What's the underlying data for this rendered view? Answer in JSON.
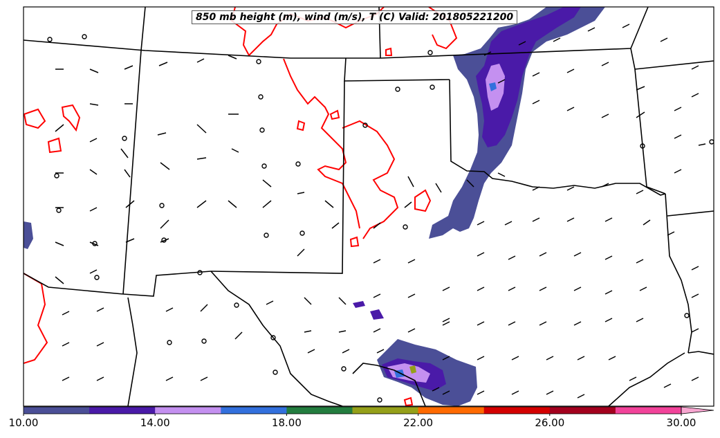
{
  "title": "850 mb height (m), wind (m/s), T (C) Valid: 201805221200",
  "colorbar": {
    "colors": [
      "#4b4f97",
      "#4a1aa8",
      "#c490f0",
      "#3370dd",
      "#237d3f",
      "#95a019",
      "#ff6a00",
      "#d40000",
      "#a3001e",
      "#f2439a",
      "#f7a6d0"
    ],
    "ticks": [
      "10.00",
      "14.00",
      "18.00",
      "22.00",
      "26.00",
      "30.00"
    ],
    "min": 10,
    "max": 31,
    "step": 2,
    "extend": "max"
  },
  "map": {
    "contour_color": "#ff0000",
    "border_color": "#000000",
    "region": "Southern Plains United States"
  }
}
